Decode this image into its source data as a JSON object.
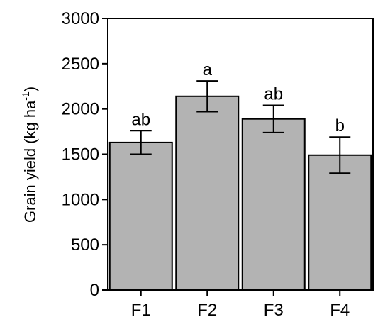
{
  "chart_data": {
    "type": "bar",
    "categories": [
      "F1",
      "F2",
      "F3",
      "F4"
    ],
    "values": [
      1630,
      2140,
      1890,
      1490
    ],
    "errors": [
      130,
      170,
      150,
      200
    ],
    "significance": [
      "ab",
      "a",
      "ab",
      "b"
    ],
    "ylabel": "Grain yield (kg ha",
    "ylabel_unit_exponent": "-1",
    "ylabel_close": ")",
    "ylim": [
      0,
      3000
    ],
    "yticks": [
      0,
      500,
      1000,
      1500,
      2000,
      2500,
      3000
    ],
    "bar_color": "#b3b3b3",
    "grid": false,
    "legend": "none"
  }
}
